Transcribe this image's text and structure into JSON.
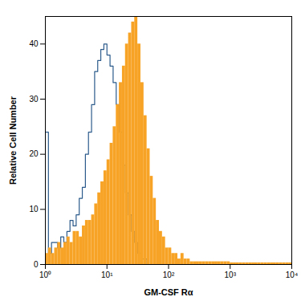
{
  "chart_data": {
    "type": "histogram",
    "x_label": "GM-CSF Rα",
    "y_label": "Relative Cell Number",
    "log": "x",
    "bins": [
      1,
      1.122,
      1.259,
      1.413,
      1.585,
      1.778,
      1.995,
      2.239,
      2.512,
      2.818,
      3.162,
      3.548,
      3.981,
      4.467,
      5.012,
      5.623,
      6.31,
      7.079,
      7.943,
      8.913,
      10,
      11.22,
      12.59,
      14.13,
      15.85,
      17.78,
      19.95,
      22.39,
      25.12,
      28.18,
      31.62,
      35.48,
      39.81,
      44.67,
      50.12,
      56.23,
      63.1,
      70.79,
      79.43,
      89.13,
      100,
      112.2,
      125.9,
      141.3,
      158.5,
      177.8,
      199.5,
      223.9,
      251.2,
      281.8,
      316.2,
      354.8,
      398.1,
      446.7,
      501.2,
      562.3,
      631,
      707.9,
      794.3,
      891.3,
      1000,
      1122,
      1259,
      1413,
      1585,
      1778,
      1995,
      2239,
      2512,
      2818,
      3162,
      3548,
      3981,
      4467,
      5012,
      5623,
      6310,
      7079,
      7943,
      8913,
      10000
    ],
    "series": [
      {
        "type": "line",
        "color": "#2c5b8c",
        "values": [
          24,
          2,
          4,
          4,
          3,
          5,
          4,
          6,
          8,
          7,
          9,
          12,
          14,
          20,
          24,
          29,
          35,
          37,
          39,
          40,
          38,
          36,
          33,
          29,
          24,
          18,
          13,
          9,
          6,
          4,
          2,
          1,
          1,
          0,
          0,
          0,
          0,
          0,
          0,
          0,
          0,
          0,
          0,
          0,
          0,
          0,
          0,
          0,
          0,
          0,
          0,
          0,
          0,
          0,
          0,
          0,
          0,
          0,
          0,
          0,
          0,
          0,
          0,
          0,
          0,
          0,
          0,
          0,
          0,
          0,
          0,
          0,
          0,
          0,
          0,
          0,
          0,
          0,
          0,
          0
        ]
      },
      {
        "type": "bar",
        "color": "#f7a325",
        "values": [
          2,
          3,
          2,
          3,
          4,
          3,
          4,
          5,
          4,
          6,
          6,
          5,
          7,
          8,
          8,
          9,
          11,
          13,
          15,
          17,
          19,
          22,
          25,
          29,
          33,
          36,
          40,
          42,
          44,
          45,
          40,
          33,
          27,
          21,
          16,
          12,
          8,
          6,
          5,
          3,
          3,
          2,
          2,
          1,
          2,
          1,
          1,
          0.5,
          0.5,
          0.5,
          0.5,
          0.5,
          0.5,
          0.5,
          0.5,
          0.5,
          0.5,
          0.5,
          0.5,
          0.5,
          0.3,
          0.3,
          0.3,
          0.3,
          0.3,
          0.3,
          0.3,
          0.3,
          0.3,
          0.3,
          0.3,
          0.3,
          0.3,
          0.3,
          0.3,
          0.3,
          0.3,
          0.3,
          0.3,
          0.3
        ]
      }
    ],
    "xlim": [
      1,
      10000
    ],
    "xticks": [
      {
        "value": 1,
        "label": "10⁰"
      },
      {
        "value": 10,
        "label": "10¹"
      },
      {
        "value": 100,
        "label": "10²"
      },
      {
        "value": 1000,
        "label": "10³"
      },
      {
        "value": 10000,
        "label": "10⁴"
      }
    ],
    "ylim": [
      0,
      45
    ],
    "yticks": [
      0,
      10,
      20,
      30,
      40
    ]
  }
}
